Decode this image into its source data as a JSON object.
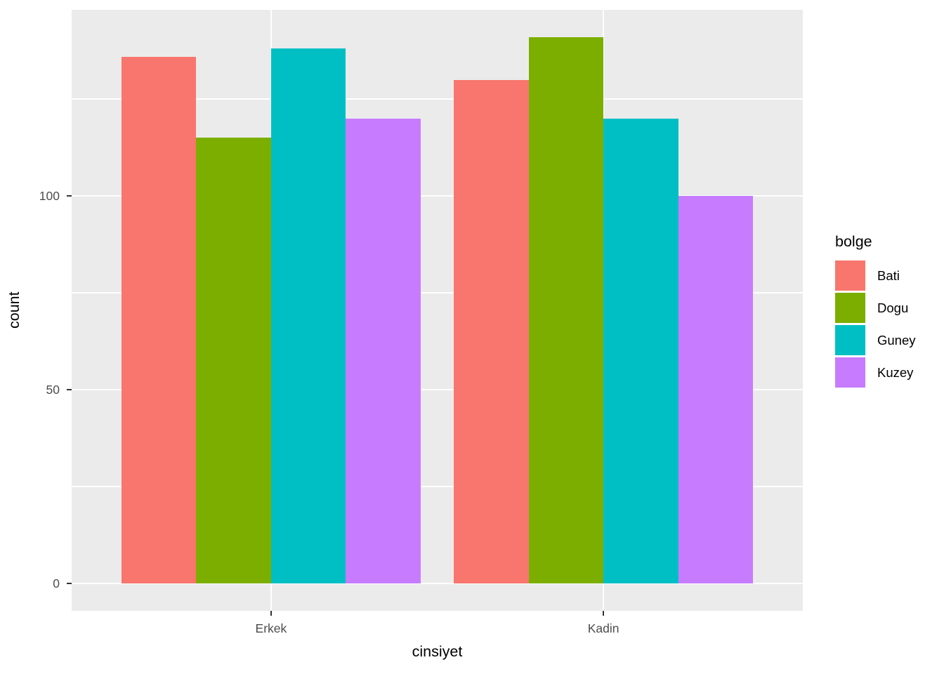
{
  "chart_data": {
    "type": "bar",
    "bar_layout": "dodge",
    "title": "",
    "xlabel": "cinsiyet",
    "ylabel": "count",
    "categories": [
      "Erkek",
      "Kadin"
    ],
    "series": [
      {
        "name": "Bati",
        "color": "#F8766D",
        "values": [
          136,
          130
        ]
      },
      {
        "name": "Dogu",
        "color": "#7CAE00",
        "values": [
          115,
          141
        ]
      },
      {
        "name": "Guney",
        "color": "#00BFC4",
        "values": [
          138,
          120
        ]
      },
      {
        "name": "Kuzey",
        "color": "#C77CFF",
        "values": [
          120,
          100
        ]
      }
    ],
    "legend_title": "bolge",
    "legend_position": "right",
    "y_ticks": [
      0,
      50,
      100
    ],
    "y_minor_ticks": [
      25,
      75,
      125
    ],
    "ylim": [
      -7.05,
      148.05
    ],
    "grid": true,
    "theme": {
      "figure_bg": "#FFFFFF",
      "panel_bg": "#EBEBEB",
      "grid_color": "#FFFFFF",
      "tick_color": "#333333",
      "tick_label_color": "#4D4D4D",
      "axis_title_color": "#000000"
    }
  }
}
